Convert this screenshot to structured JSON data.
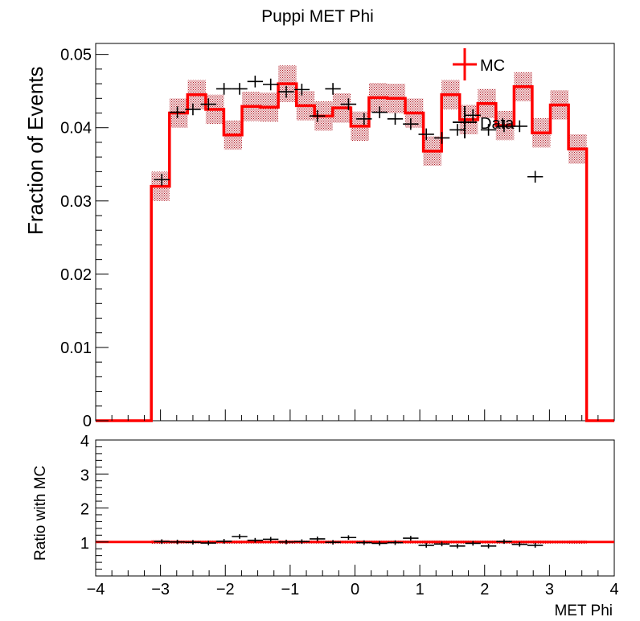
{
  "chart_data": [
    {
      "type": "histogram",
      "panel": "main",
      "title": "Puppi MET Phi",
      "ylabel": "Fraction of Events",
      "xlabel": "",
      "xlim": [
        -4,
        4
      ],
      "ylim": [
        0,
        0.0515
      ],
      "yticks": [
        0,
        0.01,
        0.02,
        0.03,
        0.04,
        0.05
      ],
      "ytick_labels": [
        "0",
        "0.01",
        "0.02",
        "0.03",
        "0.04",
        "0.05"
      ],
      "xticks": [
        -4,
        -3,
        -2,
        -1,
        0,
        1,
        2,
        3,
        4
      ],
      "grid": false,
      "legend": {
        "position": "top-right",
        "entries": [
          "MC",
          "Data"
        ]
      },
      "series": [
        {
          "name": "MC",
          "style": "step-line",
          "color": "#ff0000",
          "band_color": "#b0202a",
          "bins": [
            {
              "lo": -4.0,
              "hi": -3.1416,
              "value": 0.0,
              "err": 0.0
            },
            {
              "lo": -3.1416,
              "hi": -2.8618,
              "value": 0.032,
              "err": 0.002
            },
            {
              "lo": -2.8618,
              "hi": -2.582,
              "value": 0.042,
              "err": 0.002
            },
            {
              "lo": -2.582,
              "hi": -2.3022,
              "value": 0.0445,
              "err": 0.002
            },
            {
              "lo": -2.3022,
              "hi": -2.0224,
              "value": 0.0425,
              "err": 0.002
            },
            {
              "lo": -2.0224,
              "hi": -1.7426,
              "value": 0.039,
              "err": 0.002
            },
            {
              "lo": -1.7426,
              "hi": -1.4628,
              "value": 0.0429,
              "err": 0.002
            },
            {
              "lo": -1.4628,
              "hi": -1.183,
              "value": 0.0428,
              "err": 0.002
            },
            {
              "lo": -1.183,
              "hi": -0.9032,
              "value": 0.046,
              "err": 0.0025
            },
            {
              "lo": -0.9032,
              "hi": -0.6234,
              "value": 0.043,
              "err": 0.002
            },
            {
              "lo": -0.6234,
              "hi": -0.3436,
              "value": 0.0416,
              "err": 0.002
            },
            {
              "lo": -0.3436,
              "hi": -0.0638,
              "value": 0.0427,
              "err": 0.002
            },
            {
              "lo": -0.0638,
              "hi": 0.216,
              "value": 0.0402,
              "err": 0.002
            },
            {
              "lo": 0.216,
              "hi": 0.4958,
              "value": 0.0441,
              "err": 0.002
            },
            {
              "lo": 0.4958,
              "hi": 0.7756,
              "value": 0.044,
              "err": 0.002
            },
            {
              "lo": 0.7756,
              "hi": 1.0554,
              "value": 0.042,
              "err": 0.002
            },
            {
              "lo": 1.0554,
              "hi": 1.3352,
              "value": 0.0368,
              "err": 0.002
            },
            {
              "lo": 1.3352,
              "hi": 1.615,
              "value": 0.0445,
              "err": 0.002
            },
            {
              "lo": 1.615,
              "hi": 1.8948,
              "value": 0.0411,
              "err": 0.002
            },
            {
              "lo": 1.8948,
              "hi": 2.1746,
              "value": 0.0433,
              "err": 0.002
            },
            {
              "lo": 2.1746,
              "hi": 2.4544,
              "value": 0.0403,
              "err": 0.002
            },
            {
              "lo": 2.4544,
              "hi": 2.7342,
              "value": 0.0456,
              "err": 0.002
            },
            {
              "lo": 2.7342,
              "hi": 3.014,
              "value": 0.0393,
              "err": 0.002
            },
            {
              "lo": 3.014,
              "hi": 3.2938,
              "value": 0.0431,
              "err": 0.002
            },
            {
              "lo": 3.2938,
              "hi": 3.5736,
              "value": 0.0371,
              "err": 0.002
            },
            {
              "lo": 3.5736,
              "hi": 4.0,
              "value": 0.0,
              "err": 0.0
            }
          ]
        },
        {
          "name": "Data",
          "style": "errorbar",
          "color": "#000000",
          "points": [
            {
              "x": -2.98,
              "xerr": 0.12,
              "y": 0.0329,
              "yerr": 0.0008
            },
            {
              "x": -2.74,
              "xerr": 0.12,
              "y": 0.0421,
              "yerr": 0.0008
            },
            {
              "x": -2.5,
              "xerr": 0.12,
              "y": 0.0425,
              "yerr": 0.0008
            },
            {
              "x": -2.26,
              "xerr": 0.12,
              "y": 0.0432,
              "yerr": 0.0008
            },
            {
              "x": -2.02,
              "xerr": 0.12,
              "y": 0.0453,
              "yerr": 0.0008
            },
            {
              "x": -1.78,
              "xerr": 0.12,
              "y": 0.0453,
              "yerr": 0.0008
            },
            {
              "x": -1.54,
              "xerr": 0.12,
              "y": 0.0463,
              "yerr": 0.0008
            },
            {
              "x": -1.3,
              "xerr": 0.12,
              "y": 0.0459,
              "yerr": 0.0008
            },
            {
              "x": -1.06,
              "xerr": 0.12,
              "y": 0.0449,
              "yerr": 0.0008
            },
            {
              "x": -0.82,
              "xerr": 0.12,
              "y": 0.0452,
              "yerr": 0.0008
            },
            {
              "x": -0.58,
              "xerr": 0.12,
              "y": 0.0416,
              "yerr": 0.0008
            },
            {
              "x": -0.34,
              "xerr": 0.12,
              "y": 0.0453,
              "yerr": 0.0008
            },
            {
              "x": -0.1,
              "xerr": 0.12,
              "y": 0.0432,
              "yerr": 0.0008
            },
            {
              "x": 0.14,
              "xerr": 0.12,
              "y": 0.0412,
              "yerr": 0.0008
            },
            {
              "x": 0.38,
              "xerr": 0.12,
              "y": 0.0421,
              "yerr": 0.0008
            },
            {
              "x": 0.62,
              "xerr": 0.12,
              "y": 0.0412,
              "yerr": 0.0008
            },
            {
              "x": 0.86,
              "xerr": 0.12,
              "y": 0.0405,
              "yerr": 0.0008
            },
            {
              "x": 1.1,
              "xerr": 0.12,
              "y": 0.0391,
              "yerr": 0.0008
            },
            {
              "x": 1.34,
              "xerr": 0.12,
              "y": 0.0386,
              "yerr": 0.0008
            },
            {
              "x": 1.58,
              "xerr": 0.12,
              "y": 0.0397,
              "yerr": 0.0008
            },
            {
              "x": 1.82,
              "xerr": 0.12,
              "y": 0.0417,
              "yerr": 0.0008
            },
            {
              "x": 2.06,
              "xerr": 0.12,
              "y": 0.0397,
              "yerr": 0.0008
            },
            {
              "x": 2.3,
              "xerr": 0.12,
              "y": 0.0402,
              "yerr": 0.0008
            },
            {
              "x": 2.54,
              "xerr": 0.12,
              "y": 0.0402,
              "yerr": 0.0008
            },
            {
              "x": 2.78,
              "xerr": 0.12,
              "y": 0.0333,
              "yerr": 0.0008
            }
          ]
        }
      ]
    },
    {
      "type": "scatter",
      "panel": "ratio",
      "title": "",
      "ylabel": "Ratio with MC",
      "xlabel": "MET Phi",
      "xlim": [
        -4,
        4
      ],
      "ylim": [
        0,
        4
      ],
      "yticks": [
        1,
        2,
        3,
        4
      ],
      "ytick_labels": [
        "1",
        "2",
        "3",
        "4"
      ],
      "xticks": [
        -4,
        -3,
        -2,
        -1,
        0,
        1,
        2,
        3,
        4
      ],
      "xtick_labels": [
        "−4",
        "−3",
        "−2",
        "−1",
        "0",
        "1",
        "2",
        "3",
        "4"
      ],
      "reference_line": 1,
      "series": [
        {
          "name": "Ratio",
          "color": "#000000",
          "points": [
            {
              "x": -2.98,
              "xerr": 0.12,
              "y": 1.01,
              "yerr": 0.02
            },
            {
              "x": -2.74,
              "xerr": 0.12,
              "y": 1.0,
              "yerr": 0.02
            },
            {
              "x": -2.5,
              "xerr": 0.12,
              "y": 0.99,
              "yerr": 0.02
            },
            {
              "x": -2.26,
              "xerr": 0.12,
              "y": 0.97,
              "yerr": 0.02
            },
            {
              "x": -2.02,
              "xerr": 0.12,
              "y": 1.02,
              "yerr": 0.02
            },
            {
              "x": -1.78,
              "xerr": 0.12,
              "y": 1.16,
              "yerr": 0.02
            },
            {
              "x": -1.54,
              "xerr": 0.12,
              "y": 1.05,
              "yerr": 0.02
            },
            {
              "x": -1.3,
              "xerr": 0.12,
              "y": 1.08,
              "yerr": 0.02
            },
            {
              "x": -1.06,
              "xerr": 0.12,
              "y": 1.0,
              "yerr": 0.02
            },
            {
              "x": -0.82,
              "xerr": 0.12,
              "y": 1.01,
              "yerr": 0.02
            },
            {
              "x": -0.58,
              "xerr": 0.12,
              "y": 1.09,
              "yerr": 0.02
            },
            {
              "x": -0.34,
              "xerr": 0.12,
              "y": 0.99,
              "yerr": 0.02
            },
            {
              "x": -0.1,
              "xerr": 0.12,
              "y": 1.13,
              "yerr": 0.02
            },
            {
              "x": 0.14,
              "xerr": 0.12,
              "y": 0.98,
              "yerr": 0.02
            },
            {
              "x": 0.38,
              "xerr": 0.12,
              "y": 0.96,
              "yerr": 0.02
            },
            {
              "x": 0.62,
              "xerr": 0.12,
              "y": 0.98,
              "yerr": 0.02
            },
            {
              "x": 0.86,
              "xerr": 0.12,
              "y": 1.11,
              "yerr": 0.02
            },
            {
              "x": 1.1,
              "xerr": 0.12,
              "y": 0.9,
              "yerr": 0.02
            },
            {
              "x": 1.34,
              "xerr": 0.12,
              "y": 0.94,
              "yerr": 0.02
            },
            {
              "x": 1.58,
              "xerr": 0.12,
              "y": 0.88,
              "yerr": 0.02
            },
            {
              "x": 1.82,
              "xerr": 0.12,
              "y": 0.96,
              "yerr": 0.02
            },
            {
              "x": 2.06,
              "xerr": 0.12,
              "y": 0.88,
              "yerr": 0.02
            },
            {
              "x": 2.3,
              "xerr": 0.12,
              "y": 1.01,
              "yerr": 0.02
            },
            {
              "x": 2.54,
              "xerr": 0.12,
              "y": 0.93,
              "yerr": 0.02
            },
            {
              "x": 2.78,
              "xerr": 0.12,
              "y": 0.9,
              "yerr": 0.02
            }
          ]
        }
      ]
    }
  ]
}
